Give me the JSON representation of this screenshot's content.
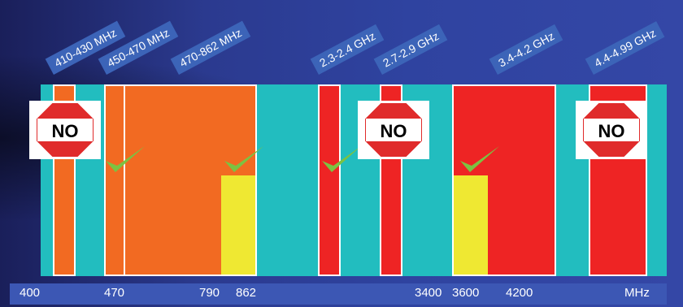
{
  "band_labels": [
    "410-430 MHz",
    "450-470 MHz",
    "470-862 MHz",
    "2.3-2.4 GHz",
    "2.7-2.9 GHz",
    "3.4-4.2 GHz",
    "4.4-4.99 GHz"
  ],
  "axis_ticks": [
    "400",
    "470",
    "790",
    "862",
    "3400",
    "3600",
    "4200",
    "MHz"
  ],
  "no_text": "NO",
  "colors": {
    "spectrum_background": "#22bdbf",
    "orange_band": "#f26a22",
    "red_band": "#ee2424",
    "yellow_band": "#efe832",
    "label_background": "#3c64b8",
    "check_mark": "#7cc242"
  }
}
